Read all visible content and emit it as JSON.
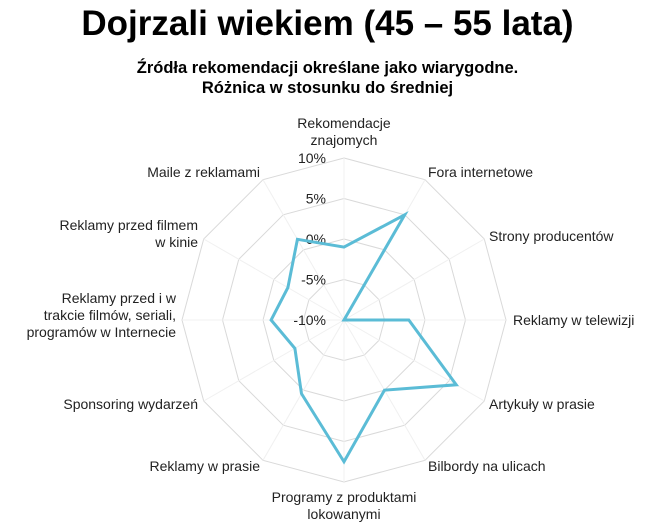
{
  "chart_data": {
    "type": "radar",
    "title": "Dojrzali wiekiem (45 – 55 lata)",
    "subtitle": [
      "Źródła rekomendacji określane jako wiarygodne.",
      "Różnica w stosunku do średniej"
    ],
    "categories": [
      [
        "Rekomendacje",
        "znajomych"
      ],
      [
        "Fora internetowe"
      ],
      [
        "Strony producentów"
      ],
      [
        "Reklamy w telewizji"
      ],
      [
        "Artykuły w prasie"
      ],
      [
        "Bilbordy na ulicach"
      ],
      [
        "Programy z produktami",
        "lokowanymi"
      ],
      [
        "Reklamy w prasie"
      ],
      [
        "Sponsoring wydarzeń"
      ],
      [
        "Reklamy przed i w",
        "trakcie filmów, seriali,",
        "programów w Internecie"
      ],
      [
        "Reklamy przed filmem",
        "w kinie"
      ],
      [
        "Maile z reklamami"
      ]
    ],
    "values": [
      -1,
      5,
      -10,
      -2,
      6,
      0,
      7.5,
      0.5,
      -3,
      -1,
      -2,
      1.5
    ],
    "rlim": [
      -10,
      10
    ],
    "ticks": [
      -10,
      -5,
      0,
      5,
      10
    ],
    "tick_labels": [
      "-10%",
      "-5%",
      "0%",
      "5%",
      "10%"
    ],
    "grid": true,
    "legend": "none",
    "line_color": "#5bbcd6",
    "grid_color": "#d9d9d9"
  }
}
